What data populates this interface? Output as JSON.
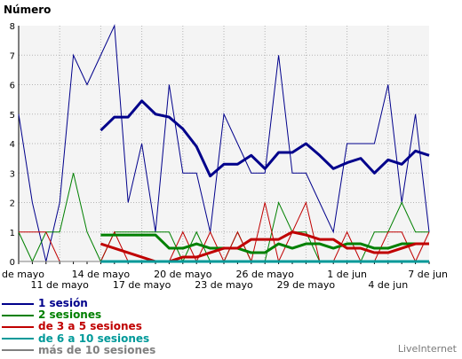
{
  "chart_data": {
    "type": "line",
    "title": "Número",
    "xlabel": "",
    "ylabel": "Número",
    "ylim": [
      0,
      8
    ],
    "y_ticks": [
      "0",
      "1",
      "2",
      "3",
      "4",
      "5",
      "6",
      "7",
      "8"
    ],
    "x_ticks_row1": [
      {
        "day": 0,
        "label": "de mayo"
      },
      {
        "day": 6,
        "label": "14 de mayo"
      },
      {
        "day": 12,
        "label": "20 de mayo"
      },
      {
        "day": 18,
        "label": "26 de mayo"
      },
      {
        "day": 24,
        "label": "1 de jun"
      },
      {
        "day": 30,
        "label": "7 de jun"
      }
    ],
    "x_ticks_row2": [
      {
        "day": 3,
        "label": "11 de mayo"
      },
      {
        "day": 9,
        "label": "17 de mayo"
      },
      {
        "day": 15,
        "label": "23 de mayo"
      },
      {
        "day": 21,
        "label": "29 de mayo"
      },
      {
        "day": 27,
        "label": "4 de jun"
      }
    ],
    "grid": true,
    "legend_position": "bottom-left",
    "series": [
      {
        "name": "1 sesión",
        "color": "#00008b",
        "kind": "daily",
        "values": [
          5,
          2,
          0,
          2,
          7,
          6,
          7,
          8,
          2,
          4,
          1,
          6,
          3,
          3,
          1,
          5,
          4,
          3,
          3,
          7,
          3,
          3,
          2,
          1,
          4,
          4,
          4,
          6,
          2,
          5,
          1
        ]
      },
      {
        "name": "2 sesiones",
        "color": "#008000",
        "kind": "daily",
        "values": [
          1,
          0,
          1,
          1,
          3,
          1,
          0,
          1,
          1,
          1,
          1,
          1,
          0,
          1,
          0,
          0,
          1,
          0,
          0,
          2,
          1,
          1,
          0,
          0,
          0,
          0,
          1,
          1,
          2,
          1,
          1
        ]
      },
      {
        "name": "de 3 a 5 sesiones",
        "color": "#c00000",
        "kind": "daily",
        "values": [
          1,
          1,
          1,
          0,
          0,
          0,
          0,
          1,
          0,
          0,
          0,
          0,
          1,
          0,
          1,
          0,
          1,
          0,
          2,
          0,
          1,
          2,
          0,
          0,
          1,
          0,
          0,
          1,
          1,
          0,
          1
        ]
      },
      {
        "name": "de 6 a 10 sesiones",
        "color": "#009999",
        "kind": "daily",
        "values": [
          0,
          0,
          0,
          0,
          0,
          0,
          0,
          0,
          0,
          0,
          0,
          0,
          0,
          0,
          0,
          0,
          0,
          0,
          0,
          0,
          0,
          0,
          0,
          0,
          0,
          0,
          0,
          0,
          0,
          0,
          0
        ]
      },
      {
        "name": "más de 10 sesiones",
        "color": "#808080",
        "kind": "daily",
        "values": [
          0,
          0,
          0,
          0,
          0,
          0,
          0,
          0,
          0,
          0,
          0,
          0,
          0,
          0,
          0,
          0,
          0,
          0,
          0,
          0,
          0,
          0,
          0,
          0,
          0,
          0,
          0,
          0,
          0,
          0,
          0
        ]
      }
    ],
    "averages": [
      {
        "series": "1 sesión",
        "start_day": 6,
        "values": [
          4.45,
          4.9,
          4.9,
          5.45,
          5.0,
          4.9,
          4.5,
          3.9,
          2.9,
          3.3,
          3.3,
          3.6,
          3.15,
          3.7,
          3.7,
          4.0,
          3.6,
          3.15,
          3.35,
          3.5,
          3.0,
          3.45,
          3.3,
          3.75,
          3.6
        ]
      },
      {
        "series": "2 sesiones",
        "start_day": 6,
        "values": [
          0.9,
          0.9,
          0.9,
          0.9,
          0.9,
          0.45,
          0.45,
          0.6,
          0.45,
          0.45,
          0.45,
          0.3,
          0.3,
          0.6,
          0.45,
          0.6,
          0.6,
          0.45,
          0.6,
          0.6,
          0.45,
          0.45,
          0.6,
          0.6,
          0.6
        ]
      },
      {
        "series": "de 3 a 5 sesiones",
        "start_day": 6,
        "values": [
          0.6,
          0.45,
          0.3,
          0.15,
          0.0,
          0.0,
          0.15,
          0.15,
          0.3,
          0.45,
          0.45,
          0.75,
          0.75,
          0.75,
          1.0,
          0.9,
          0.75,
          0.75,
          0.45,
          0.45,
          0.3,
          0.3,
          0.45,
          0.6,
          0.6
        ]
      },
      {
        "series": "de 6 a 10 sesiones",
        "start_day": 6,
        "values": [
          0,
          0,
          0,
          0,
          0,
          0,
          0,
          0,
          0,
          0,
          0,
          0,
          0,
          0,
          0,
          0,
          0,
          0,
          0,
          0,
          0,
          0,
          0,
          0,
          0
        ]
      }
    ]
  },
  "legend": [
    {
      "label": "1 sesión",
      "color": "#00008b"
    },
    {
      "label": "2 sesiones",
      "color": "#008000"
    },
    {
      "label": "de 3 a 5 sesiones",
      "color": "#c00000"
    },
    {
      "label": "de 6 a 10 sesiones",
      "color": "#009999"
    },
    {
      "label": "más de 10 sesiones",
      "color": "#808080"
    }
  ],
  "brand": "LiveInternet"
}
